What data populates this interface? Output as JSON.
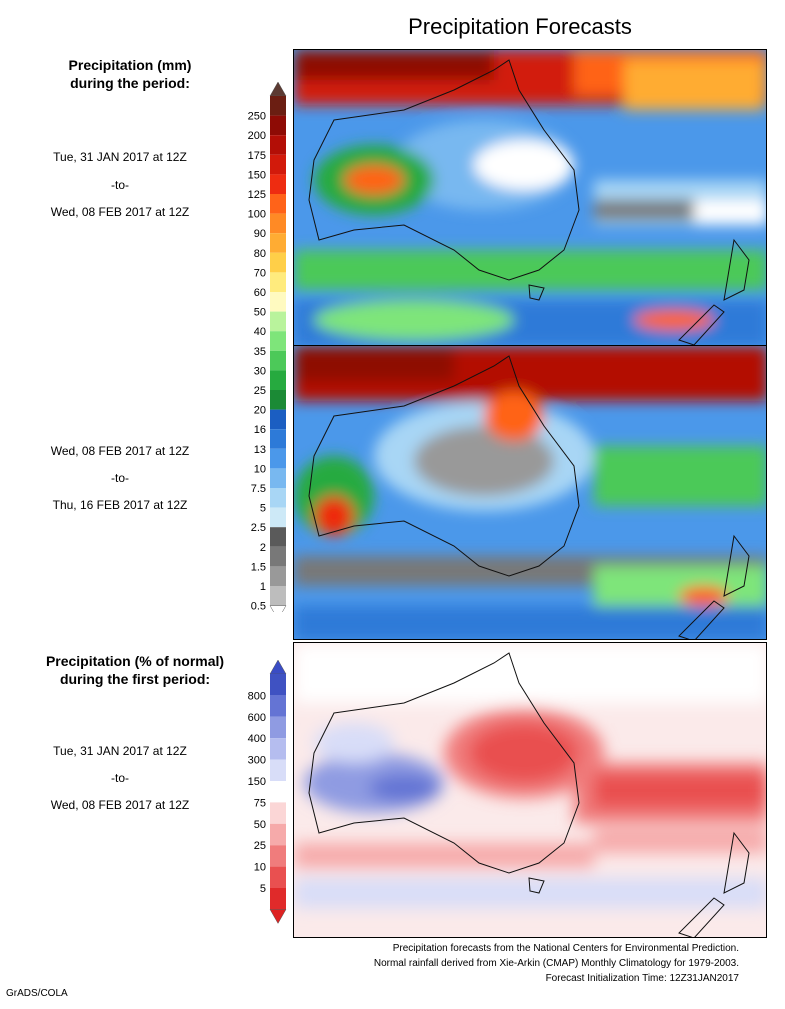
{
  "title": "Precipitation Forecasts",
  "top_heading": [
    "Precipitation (mm)",
    "during the period:"
  ],
  "bottom_heading": [
    "Precipitation (% of normal)",
    "during the first period:"
  ],
  "period1": {
    "start": "Tue, 31 JAN 2017 at 12Z",
    "sep": "-to-",
    "end": "Wed, 08 FEB 2017 at 12Z"
  },
  "period2": {
    "start": "Wed, 08 FEB 2017 at 12Z",
    "sep": "-to-",
    "end": "Thu, 16 FEB 2017 at 12Z"
  },
  "period3": {
    "start": "Tue, 31 JAN 2017 at 12Z",
    "sep": "-to-",
    "end": "Wed, 08 FEB 2017 at 12Z"
  },
  "mm_scale": {
    "labels": [
      "250",
      "200",
      "175",
      "150",
      "125",
      "100",
      "90",
      "80",
      "70",
      "60",
      "50",
      "40",
      "35",
      "30",
      "25",
      "20",
      "16",
      "13",
      "10",
      "7.5",
      "5",
      "2.5",
      "2",
      "1.5",
      "1",
      "0.5"
    ],
    "colors": [
      "#6b1e12",
      "#8e0b05",
      "#b30e06",
      "#d21a0b",
      "#ee2c11",
      "#ff6319",
      "#ff8a25",
      "#ffac33",
      "#ffcf48",
      "#ffeb7d",
      "#fffac0",
      "#b9f39c",
      "#7ee57a",
      "#4cc959",
      "#26aa3f",
      "#1b8a35",
      "#1b5ec2",
      "#2d7ad8",
      "#4b98ea",
      "#78b8f0",
      "#a8d6f5",
      "#cde9f7",
      "#5a5a5a",
      "#787878",
      "#999999",
      "#bdbdbd"
    ],
    "top_color": "#5c3a32",
    "bottom_color": "#ffffff"
  },
  "pct_scale": {
    "labels": [
      "800",
      "600",
      "400",
      "300",
      "150",
      "75",
      "50",
      "25",
      "10",
      "5"
    ],
    "colors": [
      "#3f52c2",
      "#6474d4",
      "#8f9be2",
      "#b5bdef",
      "#d8ddf8",
      "#ffffff",
      "#fbd6d6",
      "#f6aaaa",
      "#f07c7c",
      "#e95050",
      "#e02a2a"
    ],
    "top_color": "#3a4cc4",
    "bottom_color": "#dd2222"
  },
  "footer": [
    "Precipitation forecasts from the National Centers for Environmental Prediction.",
    "Normal rainfall derived from Xie-Arkin (CMAP) Monthly Climatology for 1979-2003.",
    "Forecast Initialization Time: 12Z31JAN2017"
  ],
  "credit": "GrADS/COLA"
}
